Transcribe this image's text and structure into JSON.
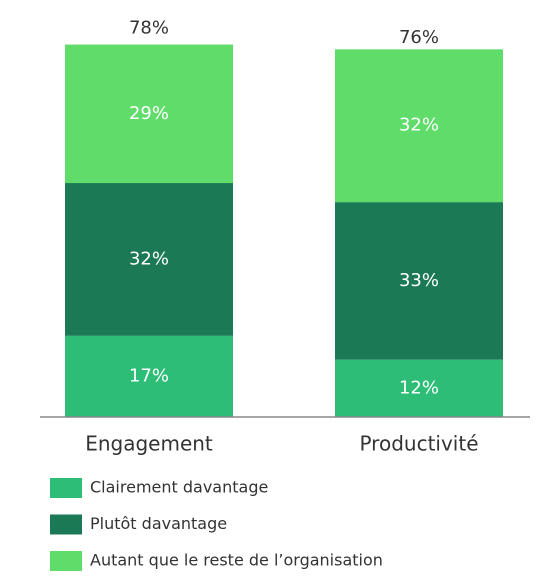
{
  "chart_data": {
    "type": "stacked-bar",
    "categories": [
      "Engagement",
      "Productivité"
    ],
    "series": [
      {
        "name": "Clairement davantage",
        "color": "#2dbd77",
        "values": [
          17,
          12
        ],
        "value_labels": [
          "17%",
          "12%"
        ]
      },
      {
        "name": "Plutôt davantage",
        "color": "#1b7a55",
        "values": [
          32,
          33
        ],
        "value_labels": [
          "32%",
          "33%"
        ]
      },
      {
        "name": "Autant que le reste de l’organisation",
        "color": "#5fdc69",
        "values": [
          29,
          32
        ],
        "value_labels": [
          "29%",
          "32%"
        ]
      }
    ],
    "totals": [
      78,
      76
    ],
    "total_labels": [
      "78%",
      "76%"
    ],
    "ylim": [
      0,
      80
    ]
  }
}
